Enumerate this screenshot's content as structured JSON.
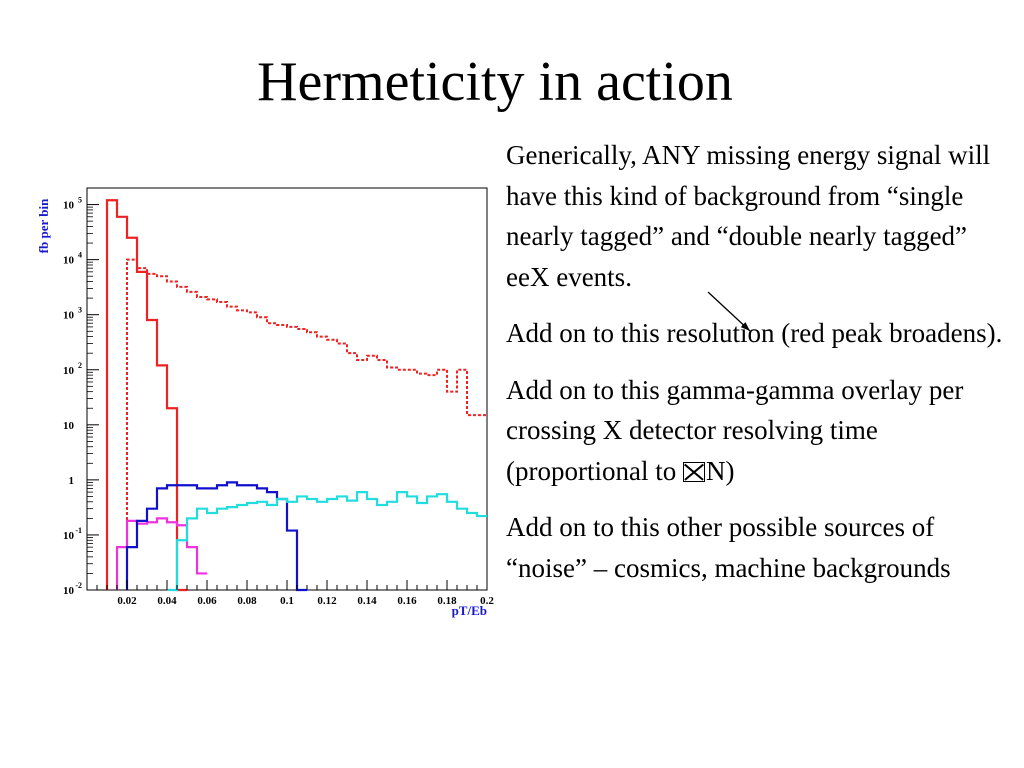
{
  "slide": {
    "title": "Hermeticity in action",
    "bullets": [
      {
        "text": "Generically, ANY missing energy signal will have this kind of background from “single nearly tagged” and “double nearly tagged” eeX events."
      },
      {
        "text": "Add on to this resolution (red peak broadens)."
      },
      {
        "pre": "Add on to this gamma-gamma overlay per crossing X detector resolving time (proportional to ",
        "post": "N)"
      },
      {
        "text": "Add on to this other possible sources of “noise” – cosmics, machine backgrounds"
      }
    ]
  },
  "chart_data": {
    "type": "line",
    "xlabel": "pT/Eb",
    "ylabel": "fb per bin",
    "xlim": [
      0,
      0.2
    ],
    "ylim": [
      0.01,
      200000
    ],
    "yscale": "log",
    "grid": false,
    "x_ticks": [
      "0.02",
      "0.04",
      "0.06",
      "0.08",
      "0.1",
      "0.12",
      "0.14",
      "0.16",
      "0.18",
      "0.2"
    ],
    "y_ticks": [
      {
        "v": 0.01,
        "b": "10",
        "e": "-2"
      },
      {
        "v": 0.1,
        "b": "10",
        "e": "-1"
      },
      {
        "v": 1,
        "b": "1",
        "e": ""
      },
      {
        "v": 10,
        "b": "10",
        "e": ""
      },
      {
        "v": 100,
        "b": "10",
        "e": "2"
      },
      {
        "v": 1000,
        "b": "10",
        "e": "3"
      },
      {
        "v": 10000,
        "b": "10",
        "e": "4"
      },
      {
        "v": 100000,
        "b": "10",
        "e": "5"
      }
    ],
    "series": [
      {
        "color": "#ee2222",
        "style": "solid",
        "x": [
          0.01,
          0.015,
          0.02,
          0.025,
          0.03,
          0.035,
          0.04,
          0.045
        ],
        "y": [
          120000,
          60000,
          25000,
          6000,
          800,
          120,
          20,
          0.01
        ]
      },
      {
        "color": "#ee2222",
        "style": "dotted",
        "x": [
          0.02,
          0.025,
          0.03,
          0.035,
          0.04,
          0.045,
          0.05,
          0.055,
          0.06,
          0.065,
          0.07,
          0.075,
          0.08,
          0.085,
          0.09,
          0.095,
          0.1,
          0.105,
          0.11,
          0.115,
          0.12,
          0.125,
          0.13,
          0.135,
          0.14,
          0.145,
          0.15,
          0.155,
          0.16,
          0.165,
          0.17,
          0.175,
          0.18,
          0.185,
          0.19,
          0.195
        ],
        "y": [
          10000,
          7000,
          5500,
          5000,
          4000,
          3200,
          2600,
          2100,
          1900,
          1700,
          1400,
          1200,
          1100,
          900,
          700,
          650,
          600,
          550,
          480,
          400,
          350,
          300,
          200,
          150,
          180,
          150,
          110,
          100,
          100,
          85,
          80,
          100,
          40,
          100,
          15,
          15
        ]
      },
      {
        "color": "#ee33dd",
        "style": "solid",
        "x": [
          0.015,
          0.02,
          0.025,
          0.03,
          0.035,
          0.04,
          0.045,
          0.05,
          0.055
        ],
        "y": [
          0.06,
          0.18,
          0.16,
          0.17,
          0.2,
          0.17,
          0.15,
          0.06,
          0.02
        ]
      },
      {
        "color": "#1111cc",
        "style": "solid",
        "x": [
          0.02,
          0.025,
          0.03,
          0.035,
          0.04,
          0.045,
          0.05,
          0.055,
          0.06,
          0.065,
          0.07,
          0.075,
          0.08,
          0.085,
          0.09,
          0.095,
          0.1,
          0.105
        ],
        "y": [
          0.06,
          0.18,
          0.3,
          0.7,
          0.8,
          0.8,
          0.8,
          0.7,
          0.7,
          0.8,
          0.9,
          0.8,
          0.8,
          0.7,
          0.6,
          0.45,
          0.12,
          0.01
        ]
      },
      {
        "color": "#22dddd",
        "style": "solid",
        "x": [
          0.04,
          0.045,
          0.05,
          0.055,
          0.06,
          0.065,
          0.07,
          0.075,
          0.08,
          0.085,
          0.09,
          0.095,
          0.1,
          0.105,
          0.11,
          0.115,
          0.12,
          0.125,
          0.13,
          0.135,
          0.14,
          0.145,
          0.15,
          0.155,
          0.16,
          0.165,
          0.17,
          0.175,
          0.18,
          0.185,
          0.19,
          0.195
        ],
        "y": [
          0.01,
          0.08,
          0.2,
          0.3,
          0.25,
          0.3,
          0.32,
          0.35,
          0.38,
          0.4,
          0.35,
          0.45,
          0.4,
          0.5,
          0.45,
          0.4,
          0.45,
          0.5,
          0.42,
          0.6,
          0.45,
          0.35,
          0.4,
          0.6,
          0.5,
          0.38,
          0.5,
          0.55,
          0.4,
          0.3,
          0.25,
          0.22
        ]
      }
    ],
    "annotations": [
      {
        "type": "arrow",
        "x": 0.113,
        "y": 30000,
        "x2": 0.133,
        "y2": 4000
      }
    ]
  }
}
